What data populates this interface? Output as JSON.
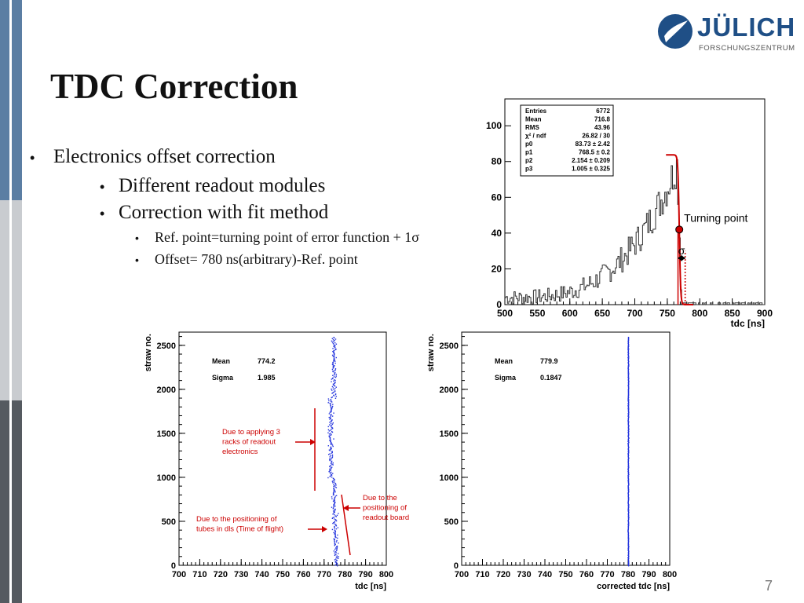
{
  "slide": {
    "title": "TDC Correction",
    "page_number": "7",
    "bullets": [
      {
        "level": 1,
        "marker": "•",
        "text": "Electronics offset correction"
      },
      {
        "level": 2,
        "marker": "•",
        "text": "Different readout modules"
      },
      {
        "level": 2,
        "marker": "•",
        "text": "Correction with fit method"
      },
      {
        "level": 3,
        "marker": "•",
        "text": "Ref. point=turning point of error function + 1σ"
      },
      {
        "level": 3,
        "marker": "•",
        "text": "Offset= 780 ns(arbitrary)-Ref. point"
      }
    ]
  },
  "logo": {
    "name": "JÜLICH",
    "subtitle": "FORSCHUNGSZENTRUM",
    "color": "#1f4f86"
  },
  "colors": {
    "accent_red": "#cc0000",
    "plot_blue": "#2233dd",
    "sidebar_dark": "#555a60",
    "sidebar_blue": "#5b7ea3",
    "sidebar_gray": "#c9ccd0"
  },
  "chart_data": [
    {
      "type": "line",
      "xlabel": "tdc [ns]",
      "ylabel": "",
      "xlim": [
        500,
        900
      ],
      "ylim": [
        0,
        115
      ],
      "x_ticks": [
        500,
        550,
        600,
        650,
        700,
        750,
        800,
        850,
        900
      ],
      "y_ticks": [
        0,
        20,
        40,
        60,
        80,
        100
      ],
      "stats_box": [
        [
          "Entries",
          "6772"
        ],
        [
          "Mean",
          "716.8"
        ],
        [
          "RMS",
          "43.96"
        ],
        [
          "χ² / ndf",
          "26.82 / 30"
        ],
        [
          "p0",
          "83.73 ± 2.42"
        ],
        [
          "p1",
          "768.5 ± 0.2"
        ],
        [
          "p2",
          "2.154 ± 0.209"
        ],
        [
          "p3",
          "1.005 ± 0.325"
        ]
      ],
      "annotations": {
        "turning_point": "Turning point",
        "sigma": "σ"
      },
      "turning_point": {
        "x": 768.5,
        "y": 42
      },
      "fit": {
        "type": "error function",
        "p0": 83.73,
        "p1": 768.5,
        "p2": 2.154,
        "p3": 1.005
      }
    },
    {
      "type": "scatter",
      "xlabel": "tdc [ns]",
      "ylabel": "straw no.",
      "xlim": [
        700,
        800
      ],
      "ylim": [
        0,
        2650
      ],
      "x_ticks": [
        700,
        710,
        720,
        730,
        740,
        750,
        760,
        770,
        780,
        790,
        800
      ],
      "y_ticks": [
        0,
        500,
        1000,
        1500,
        2000,
        2500
      ],
      "stats": [
        [
          "Mean",
          "774.2"
        ],
        [
          "Sigma",
          "1.985"
        ]
      ],
      "center_x": 774.2,
      "annotations": [
        "Due to applying 3 racks of readout electronics",
        "Due to the positioning of readout board",
        "Due to the positioning of tubes in dls (Time of flight)"
      ]
    },
    {
      "type": "scatter",
      "xlabel": "corrected tdc [ns]",
      "ylabel": "straw no.",
      "xlim": [
        700,
        800
      ],
      "ylim": [
        0,
        2650
      ],
      "x_ticks": [
        700,
        710,
        720,
        730,
        740,
        750,
        760,
        770,
        780,
        790,
        800
      ],
      "y_ticks": [
        0,
        500,
        1000,
        1500,
        2000,
        2500
      ],
      "stats": [
        [
          "Mean",
          "779.9"
        ],
        [
          "Sigma",
          "0.1847"
        ]
      ],
      "center_x": 779.9
    }
  ]
}
